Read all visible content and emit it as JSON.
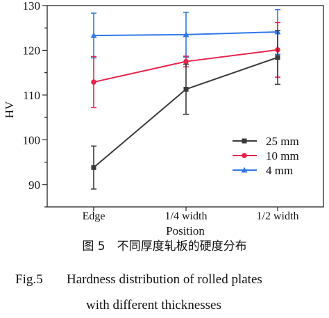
{
  "chart_data": {
    "type": "line",
    "categories": [
      "Edge",
      "1/4 width",
      "1/2 width"
    ],
    "xlabel": "Position",
    "ylabel": "HV",
    "ylim": [
      85,
      130
    ],
    "yticks": [
      90,
      100,
      110,
      120,
      130
    ],
    "grid": false,
    "legend_position": "right-middle",
    "series": [
      {
        "name": "25 mm",
        "color": "#3a3a3a",
        "marker": "square",
        "values": [
          93.8,
          111.3,
          118.4
        ],
        "errors": [
          4.8,
          5.6,
          6.0
        ]
      },
      {
        "name": "10 mm",
        "color": "#e8234a",
        "marker": "circle",
        "values": [
          112.9,
          117.5,
          120.1
        ],
        "errors": [
          5.7,
          1.2,
          6.1
        ]
      },
      {
        "name": "4 mm",
        "color": "#2f78e8",
        "marker": "triangle",
        "values": [
          123.3,
          123.5,
          124.1
        ],
        "errors": [
          5.0,
          5.0,
          5.0
        ]
      }
    ]
  },
  "caption": {
    "cn": "图 5　不同厚度轧板的硬度分布",
    "en_number": "Fig.5",
    "en_line1": "Hardness distribution of rolled plates",
    "en_line2": "with different thicknesses"
  }
}
